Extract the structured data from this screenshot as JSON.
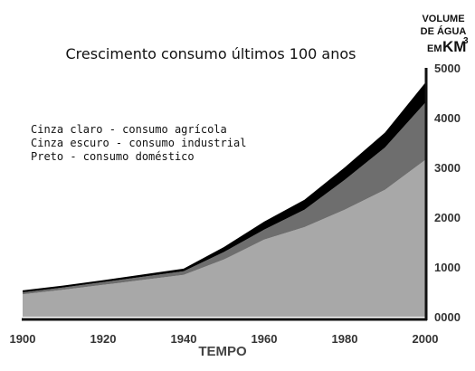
{
  "chart_data": {
    "type": "area",
    "stacked": true,
    "title": "Crescimento consumo últimos 100 anos",
    "xlabel": "TEMPO",
    "ylabel_lines": [
      "VOLUME",
      "DE ÁGUA"
    ],
    "ylabel_unit_prefix": "EM",
    "ylabel_unit": "KM",
    "ylabel_unit_exp": "3",
    "xlim": [
      1900,
      2000
    ],
    "ylim": [
      0,
      5000
    ],
    "x_ticks": [
      "1900",
      "1920",
      "1940",
      "1960",
      "1980",
      "2000"
    ],
    "y_ticks": [
      "0000",
      "1000",
      "2000",
      "3000",
      "4000",
      "5000"
    ],
    "y_axis_side": "right",
    "legend": [
      "Cinza claro - consumo agrícola",
      "Cinza escuro - consumo industrial",
      "Preto - consumo doméstico"
    ],
    "x": [
      1900,
      1910,
      1920,
      1930,
      1940,
      1950,
      1960,
      1970,
      1980,
      1990,
      2000
    ],
    "series": [
      {
        "color": "#a8a8a8",
        "values": [
          450,
          540,
          640,
          740,
          840,
          1150,
          1550,
          1800,
          2150,
          2550,
          3150
        ]
      },
      {
        "color": "#6e6e6e",
        "values": [
          40,
          45,
          55,
          65,
          75,
          150,
          200,
          350,
          600,
          850,
          1150
        ]
      },
      {
        "color": "#000000",
        "values": [
          40,
          40,
          40,
          45,
          50,
          100,
          160,
          200,
          250,
          300,
          400
        ]
      }
    ]
  }
}
